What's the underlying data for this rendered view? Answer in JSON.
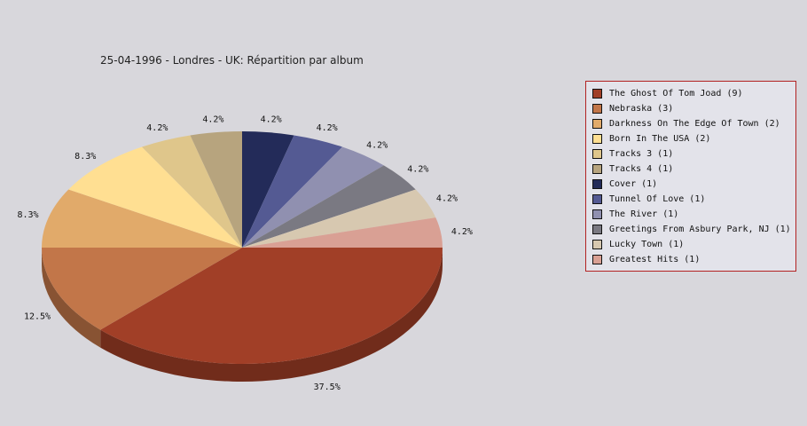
{
  "chart_data": {
    "type": "pie",
    "title": "25-04-1996 - Londres - UK:  Répartition par album",
    "slices": [
      {
        "label": "The Ghost Of Tom Joad",
        "count": 9,
        "percent_label": "37.5%",
        "color": "#a13f27"
      },
      {
        "label": "Nebraska",
        "count": 3,
        "percent_label": "12.5%",
        "color": "#c27649"
      },
      {
        "label": "Darkness On The Edge Of Town",
        "count": 2,
        "percent_label": "8.3%",
        "color": "#e1aa6a"
      },
      {
        "label": "Born In The USA",
        "count": 2,
        "percent_label": "8.3%",
        "color": "#ffdf92"
      },
      {
        "label": "Tracks 3",
        "count": 1,
        "percent_label": "4.2%",
        "color": "#dfc68b"
      },
      {
        "label": "Tracks 4",
        "count": 1,
        "percent_label": "4.2%",
        "color": "#b7a47e"
      },
      {
        "label": "Cover",
        "count": 1,
        "percent_label": "4.2%",
        "color": "#232b59"
      },
      {
        "label": "Tunnel Of Love",
        "count": 1,
        "percent_label": "4.2%",
        "color": "#545a93"
      },
      {
        "label": "The River",
        "count": 1,
        "percent_label": "4.2%",
        "color": "#9090b0"
      },
      {
        "label": "Greetings From Asbury Park, NJ",
        "count": 1,
        "percent_label": "4.2%",
        "color": "#7a7982"
      },
      {
        "label": "Lucky Town",
        "count": 1,
        "percent_label": "4.2%",
        "color": "#d7c8b0"
      },
      {
        "label": "Greatest Hits",
        "count": 1,
        "percent_label": "4.2%",
        "color": "#d9a094"
      }
    ],
    "legend": {
      "position": "right",
      "border_color": "#b22222",
      "items": [
        "The Ghost Of Tom Joad (9)",
        "Nebraska (3)",
        "Darkness On The Edge Of Town (2)",
        "Born In The USA (2)",
        "Tracks 3 (1)",
        "Tracks 4 (1)",
        "Cover (1)",
        "Tunnel Of Love (1)",
        "The River (1)",
        "Greetings From Asbury Park, NJ (1)",
        "Lucky Town (1)",
        "Greatest Hits (1)"
      ]
    },
    "style": "3d-pie"
  }
}
